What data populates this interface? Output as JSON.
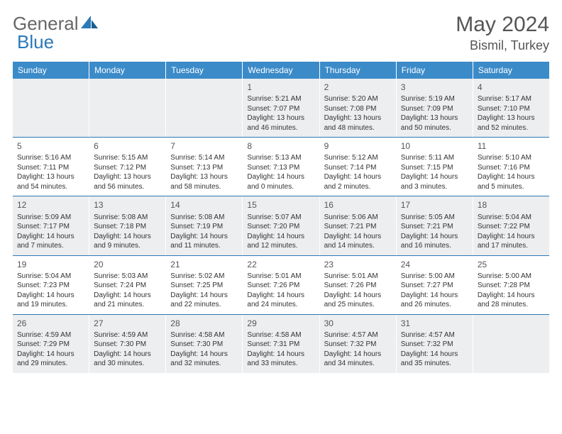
{
  "brand": {
    "part1": "General",
    "part2": "Blue"
  },
  "title": "May 2024",
  "location": "Bismil, Turkey",
  "headers_bg": "#3b8bc9",
  "rule_color": "#2b79b8",
  "shaded_bg": "#eceeef",
  "day_names": [
    "Sunday",
    "Monday",
    "Tuesday",
    "Wednesday",
    "Thursday",
    "Friday",
    "Saturday"
  ],
  "weeks": [
    [
      null,
      null,
      null,
      {
        "n": "1",
        "sr": "5:21 AM",
        "ss": "7:07 PM",
        "dl": "13 hours and 46 minutes."
      },
      {
        "n": "2",
        "sr": "5:20 AM",
        "ss": "7:08 PM",
        "dl": "13 hours and 48 minutes."
      },
      {
        "n": "3",
        "sr": "5:19 AM",
        "ss": "7:09 PM",
        "dl": "13 hours and 50 minutes."
      },
      {
        "n": "4",
        "sr": "5:17 AM",
        "ss": "7:10 PM",
        "dl": "13 hours and 52 minutes."
      }
    ],
    [
      {
        "n": "5",
        "sr": "5:16 AM",
        "ss": "7:11 PM",
        "dl": "13 hours and 54 minutes."
      },
      {
        "n": "6",
        "sr": "5:15 AM",
        "ss": "7:12 PM",
        "dl": "13 hours and 56 minutes."
      },
      {
        "n": "7",
        "sr": "5:14 AM",
        "ss": "7:13 PM",
        "dl": "13 hours and 58 minutes."
      },
      {
        "n": "8",
        "sr": "5:13 AM",
        "ss": "7:13 PM",
        "dl": "14 hours and 0 minutes."
      },
      {
        "n": "9",
        "sr": "5:12 AM",
        "ss": "7:14 PM",
        "dl": "14 hours and 2 minutes."
      },
      {
        "n": "10",
        "sr": "5:11 AM",
        "ss": "7:15 PM",
        "dl": "14 hours and 3 minutes."
      },
      {
        "n": "11",
        "sr": "5:10 AM",
        "ss": "7:16 PM",
        "dl": "14 hours and 5 minutes."
      }
    ],
    [
      {
        "n": "12",
        "sr": "5:09 AM",
        "ss": "7:17 PM",
        "dl": "14 hours and 7 minutes."
      },
      {
        "n": "13",
        "sr": "5:08 AM",
        "ss": "7:18 PM",
        "dl": "14 hours and 9 minutes."
      },
      {
        "n": "14",
        "sr": "5:08 AM",
        "ss": "7:19 PM",
        "dl": "14 hours and 11 minutes."
      },
      {
        "n": "15",
        "sr": "5:07 AM",
        "ss": "7:20 PM",
        "dl": "14 hours and 12 minutes."
      },
      {
        "n": "16",
        "sr": "5:06 AM",
        "ss": "7:21 PM",
        "dl": "14 hours and 14 minutes."
      },
      {
        "n": "17",
        "sr": "5:05 AM",
        "ss": "7:21 PM",
        "dl": "14 hours and 16 minutes."
      },
      {
        "n": "18",
        "sr": "5:04 AM",
        "ss": "7:22 PM",
        "dl": "14 hours and 17 minutes."
      }
    ],
    [
      {
        "n": "19",
        "sr": "5:04 AM",
        "ss": "7:23 PM",
        "dl": "14 hours and 19 minutes."
      },
      {
        "n": "20",
        "sr": "5:03 AM",
        "ss": "7:24 PM",
        "dl": "14 hours and 21 minutes."
      },
      {
        "n": "21",
        "sr": "5:02 AM",
        "ss": "7:25 PM",
        "dl": "14 hours and 22 minutes."
      },
      {
        "n": "22",
        "sr": "5:01 AM",
        "ss": "7:26 PM",
        "dl": "14 hours and 24 minutes."
      },
      {
        "n": "23",
        "sr": "5:01 AM",
        "ss": "7:26 PM",
        "dl": "14 hours and 25 minutes."
      },
      {
        "n": "24",
        "sr": "5:00 AM",
        "ss": "7:27 PM",
        "dl": "14 hours and 26 minutes."
      },
      {
        "n": "25",
        "sr": "5:00 AM",
        "ss": "7:28 PM",
        "dl": "14 hours and 28 minutes."
      }
    ],
    [
      {
        "n": "26",
        "sr": "4:59 AM",
        "ss": "7:29 PM",
        "dl": "14 hours and 29 minutes."
      },
      {
        "n": "27",
        "sr": "4:59 AM",
        "ss": "7:30 PM",
        "dl": "14 hours and 30 minutes."
      },
      {
        "n": "28",
        "sr": "4:58 AM",
        "ss": "7:30 PM",
        "dl": "14 hours and 32 minutes."
      },
      {
        "n": "29",
        "sr": "4:58 AM",
        "ss": "7:31 PM",
        "dl": "14 hours and 33 minutes."
      },
      {
        "n": "30",
        "sr": "4:57 AM",
        "ss": "7:32 PM",
        "dl": "14 hours and 34 minutes."
      },
      {
        "n": "31",
        "sr": "4:57 AM",
        "ss": "7:32 PM",
        "dl": "14 hours and 35 minutes."
      },
      null
    ]
  ]
}
